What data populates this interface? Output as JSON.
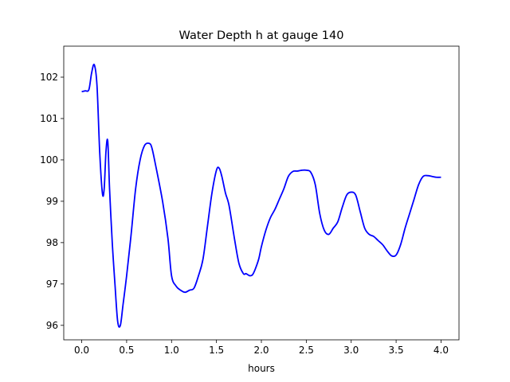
{
  "chart_data": {
    "type": "line",
    "title": "Water Depth h at gauge 140",
    "xlabel": "hours",
    "ylabel": "",
    "xlim": [
      -0.2,
      4.2
    ],
    "ylim": [
      95.65,
      102.75
    ],
    "grid": false,
    "x_ticks": [
      0.0,
      0.5,
      1.0,
      1.5,
      2.0,
      2.5,
      3.0,
      3.5,
      4.0
    ],
    "x_tick_labels": [
      "0.0",
      "0.5",
      "1.0",
      "1.5",
      "2.0",
      "2.5",
      "3.0",
      "3.5",
      "4.0"
    ],
    "y_ticks": [
      96,
      97,
      98,
      99,
      100,
      101,
      102
    ],
    "y_tick_labels": [
      "96",
      "97",
      "98",
      "99",
      "100",
      "101",
      "102"
    ],
    "series": [
      {
        "color": "#0000ff",
        "x": [
          0.0,
          0.04,
          0.08,
          0.11,
          0.14,
          0.17,
          0.2,
          0.23,
          0.25,
          0.27,
          0.29,
          0.31,
          0.34,
          0.37,
          0.4,
          0.43,
          0.46,
          0.5,
          0.55,
          0.6,
          0.65,
          0.7,
          0.75,
          0.78,
          0.82,
          0.9,
          0.96,
          1.0,
          1.05,
          1.1,
          1.15,
          1.2,
          1.25,
          1.3,
          1.35,
          1.4,
          1.45,
          1.5,
          1.53,
          1.56,
          1.6,
          1.64,
          1.7,
          1.75,
          1.8,
          1.83,
          1.87,
          1.9,
          1.93,
          1.97,
          2.0,
          2.05,
          2.1,
          2.15,
          2.2,
          2.25,
          2.3,
          2.35,
          2.4,
          2.45,
          2.5,
          2.55,
          2.6,
          2.65,
          2.7,
          2.75,
          2.8,
          2.85,
          2.9,
          2.95,
          3.0,
          3.05,
          3.1,
          3.15,
          3.2,
          3.25,
          3.3,
          3.35,
          3.4,
          3.45,
          3.5,
          3.55,
          3.6,
          3.65,
          3.7,
          3.75,
          3.8,
          3.85,
          3.9,
          3.95,
          4.0
        ],
        "values": [
          101.65,
          101.67,
          101.7,
          102.1,
          102.3,
          101.8,
          100.2,
          99.2,
          99.3,
          100.2,
          100.45,
          99.3,
          98.0,
          97.0,
          96.1,
          96.0,
          96.5,
          97.2,
          98.2,
          99.3,
          100.0,
          100.35,
          100.4,
          100.3,
          99.9,
          99.0,
          98.1,
          97.2,
          96.95,
          96.85,
          96.8,
          96.85,
          96.9,
          97.2,
          97.6,
          98.4,
          99.2,
          99.75,
          99.8,
          99.6,
          99.2,
          98.9,
          98.1,
          97.5,
          97.25,
          97.25,
          97.2,
          97.22,
          97.35,
          97.6,
          97.9,
          98.3,
          98.6,
          98.8,
          99.05,
          99.3,
          99.6,
          99.72,
          99.73,
          99.75,
          99.75,
          99.7,
          99.4,
          98.7,
          98.3,
          98.2,
          98.35,
          98.5,
          98.85,
          99.15,
          99.22,
          99.15,
          98.75,
          98.35,
          98.2,
          98.15,
          98.05,
          97.95,
          97.8,
          97.68,
          97.7,
          97.95,
          98.35,
          98.7,
          99.05,
          99.4,
          99.6,
          99.62,
          99.6,
          99.58,
          99.58
        ]
      }
    ]
  }
}
